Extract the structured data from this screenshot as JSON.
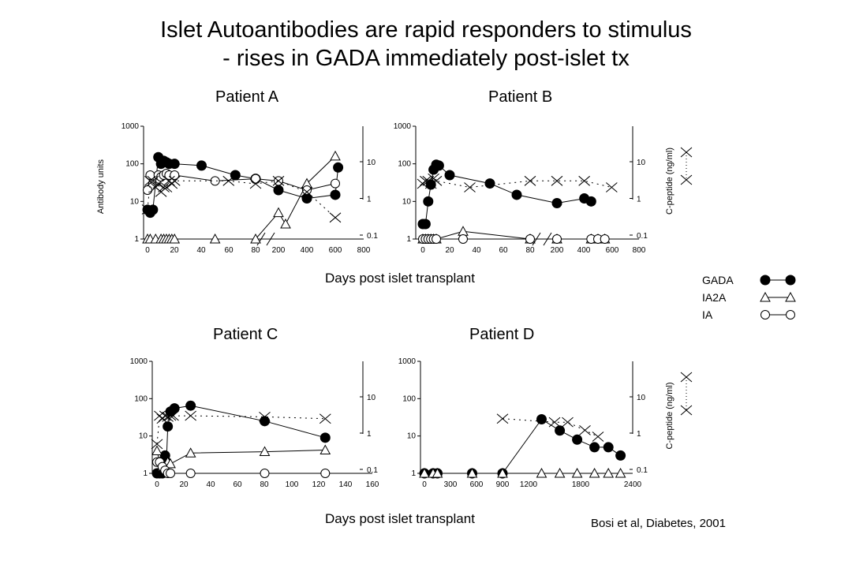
{
  "slide": {
    "title_line1": "Islet Autoantibodies are rapid responders to stimulus",
    "title_line2": "- rises in GADA immediately post-islet tx",
    "xlabel_top": "Days post islet transplant",
    "xlabel_bottom": "Days post islet transplant",
    "citation": "Bosi et al, Diabetes, 2001"
  },
  "legend": {
    "items": [
      {
        "label": "GADA",
        "marker": "filled-circle"
      },
      {
        "label": "IA2A",
        "marker": "open-triangle"
      },
      {
        "label": "IA",
        "marker": "open-circle"
      }
    ],
    "cpeptide_marker": "x"
  },
  "colors": {
    "series": "#000000",
    "background": "#ffffff"
  },
  "chart_data": [
    {
      "type": "line",
      "panel": "Patient A",
      "title": "Patient A",
      "ylabel": "Antibody units",
      "y2label": "",
      "yscale": "log",
      "ylim": [
        1,
        1000
      ],
      "yticks": [
        "1",
        "10",
        "100",
        "1000"
      ],
      "y2lim": [
        0.1,
        10
      ],
      "y2ticks": [
        "0.1",
        "1",
        "10"
      ],
      "axis_break": true,
      "xticks": [
        "0",
        "20",
        "40",
        "60",
        "80",
        "200",
        "400",
        "600",
        "800"
      ],
      "series": [
        {
          "name": "GADA",
          "marker": "filled-circle",
          "axis": "left",
          "x": [
            "0",
            "2",
            "4",
            "8",
            "10",
            "12",
            "14",
            "16",
            "20",
            "40",
            "65",
            "80",
            "200",
            "400",
            "600",
            "620"
          ],
          "y": [
            6,
            5,
            6,
            150,
            100,
            120,
            110,
            100,
            100,
            90,
            50,
            40,
            20,
            12,
            15,
            80
          ]
        },
        {
          "name": "IA2A",
          "marker": "open-triangle",
          "axis": "left",
          "x": [
            "0",
            "2",
            "6",
            "10",
            "12",
            "14",
            "16",
            "18",
            "20",
            "50",
            "80",
            "200",
            "250",
            "400",
            "600"
          ],
          "y": [
            1,
            1,
            1,
            1,
            1,
            1,
            1,
            1,
            1,
            1,
            1,
            5,
            2.5,
            30,
            160
          ]
        },
        {
          "name": "IA",
          "marker": "open-circle",
          "axis": "left",
          "x": [
            "0",
            "2",
            "8",
            "10",
            "12",
            "14",
            "16",
            "20",
            "50",
            "80",
            "200",
            "400",
            "600"
          ],
          "y": [
            20,
            50,
            50,
            45,
            50,
            55,
            50,
            50,
            35,
            40,
            35,
            20,
            30
          ]
        },
        {
          "name": "C-peptide",
          "marker": "x",
          "axis": "right",
          "x": [
            "0",
            "2",
            "4",
            "6",
            "8",
            "10",
            "12",
            "14",
            "16",
            "18",
            "20",
            "60",
            "80",
            "200",
            "400",
            "600"
          ],
          "y": [
            0.5,
            3,
            3,
            2,
            2.5,
            1.5,
            2,
            2,
            3,
            2.5,
            3,
            3,
            2.5,
            3,
            1.5,
            0.3
          ]
        }
      ]
    },
    {
      "type": "line",
      "panel": "Patient B",
      "title": "Patient B",
      "ylabel": "",
      "y2label": "C-peptide (ng/ml)",
      "yscale": "log",
      "ylim": [
        1,
        1000
      ],
      "yticks": [
        "1",
        "10",
        "100",
        "1000"
      ],
      "y2lim": [
        0.1,
        10
      ],
      "y2ticks": [
        "0.1",
        "1",
        "10"
      ],
      "axis_break": true,
      "xticks": [
        "0",
        "20",
        "40",
        "60",
        "80",
        "200",
        "400",
        "600",
        "800"
      ],
      "series": [
        {
          "name": "GADA",
          "marker": "filled-circle",
          "axis": "left",
          "x": [
            "0",
            "2",
            "4",
            "6",
            "8",
            "10",
            "12",
            "20",
            "50",
            "70",
            "200",
            "400",
            "450"
          ],
          "y": [
            2.5,
            2.5,
            10,
            28,
            70,
            95,
            90,
            50,
            30,
            15,
            9,
            12,
            10
          ]
        },
        {
          "name": "IA2A",
          "marker": "open-triangle",
          "axis": "left",
          "x": [
            "0",
            "2",
            "4",
            "6",
            "8",
            "10",
            "30",
            "80",
            "200",
            "450",
            "500",
            "550"
          ],
          "y": [
            1,
            1,
            1,
            1,
            1,
            1,
            1.6,
            1,
            1,
            1,
            1,
            1
          ]
        },
        {
          "name": "IA",
          "marker": "open-circle",
          "axis": "left",
          "x": [
            "0",
            "2",
            "4",
            "6",
            "8",
            "10",
            "30",
            "80",
            "200",
            "450",
            "500",
            "550"
          ],
          "y": [
            1,
            1,
            1,
            1,
            1,
            1,
            1,
            1,
            1,
            1,
            1,
            1
          ]
        },
        {
          "name": "C-peptide",
          "marker": "x",
          "axis": "right",
          "x": [
            "0",
            "2",
            "4",
            "6",
            "8",
            "10",
            "35",
            "80",
            "200",
            "400",
            "600"
          ],
          "y": [
            2.5,
            3,
            3,
            2.5,
            3.5,
            3,
            2,
            3,
            3,
            3,
            2
          ]
        }
      ]
    },
    {
      "type": "line",
      "panel": "Patient C",
      "title": "Patient C",
      "ylabel": "",
      "y2label": "",
      "yscale": "log",
      "ylim": [
        1,
        1000
      ],
      "yticks": [
        "1",
        "10",
        "100",
        "1000"
      ],
      "y2lim": [
        0.1,
        10
      ],
      "y2ticks": [
        "0.1",
        "1",
        "10"
      ],
      "axis_break": false,
      "xlim": [
        0,
        160
      ],
      "xticks": [
        "0",
        "20",
        "40",
        "60",
        "80",
        "100",
        "120",
        "140",
        "160"
      ],
      "series": [
        {
          "name": "GADA",
          "marker": "filled-circle",
          "axis": "left",
          "x": [
            0,
            2,
            4,
            6,
            7,
            8,
            10,
            13,
            25,
            80,
            125
          ],
          "y": [
            1,
            1,
            1,
            3,
            2,
            18,
            45,
            55,
            65,
            25,
            9
          ]
        },
        {
          "name": "IA2A",
          "marker": "open-triangle",
          "axis": "left",
          "x": [
            0,
            2,
            4,
            6,
            8,
            10,
            25,
            80,
            125
          ],
          "y": [
            4,
            2,
            1.5,
            1.5,
            2,
            1.8,
            3.5,
            3.8,
            4.2
          ]
        },
        {
          "name": "IA",
          "marker": "open-circle",
          "axis": "left",
          "x": [
            0,
            2,
            4,
            6,
            8,
            10,
            25,
            80,
            125
          ],
          "y": [
            2,
            2,
            1.5,
            1.2,
            1,
            1,
            1,
            1,
            1
          ]
        },
        {
          "name": "C-peptide",
          "marker": "x",
          "axis": "right",
          "x": [
            0,
            2,
            4,
            6,
            8,
            10,
            12,
            25,
            80,
            125
          ],
          "y": [
            0.5,
            3,
            2.5,
            3,
            2.8,
            3,
            3,
            3,
            2.8,
            2.5
          ]
        }
      ]
    },
    {
      "type": "line",
      "panel": "Patient D",
      "title": "Patient D",
      "ylabel": "",
      "y2label": "C-peptide (ng/ml)",
      "yscale": "log",
      "ylim": [
        1,
        1000
      ],
      "yticks": [
        "1",
        "10",
        "100",
        "1000"
      ],
      "y2lim": [
        0.1,
        10
      ],
      "y2ticks": [
        "0.1",
        "1",
        "10"
      ],
      "axis_break": false,
      "xlim": [
        0,
        2400
      ],
      "xticks": [
        "0",
        "300",
        "600",
        "900",
        "1200",
        "1800",
        "2400"
      ],
      "series": [
        {
          "name": "GADA",
          "marker": "filled-circle",
          "axis": "left",
          "x": [
            0,
            100,
            150,
            550,
            900,
            1350,
            1560,
            1760,
            1960,
            2120,
            2260
          ],
          "y": [
            1,
            1,
            1,
            1,
            1,
            28,
            14,
            8,
            5,
            5,
            3
          ]
        },
        {
          "name": "IA2A",
          "marker": "open-triangle",
          "axis": "left",
          "x": [
            0,
            100,
            150,
            550,
            900,
            1350,
            1560,
            1760,
            1960,
            2120,
            2260
          ],
          "y": [
            1,
            1,
            1,
            1,
            1,
            1,
            1,
            1,
            1,
            1,
            1
          ]
        },
        {
          "name": "C-peptide",
          "marker": "x",
          "axis": "right",
          "x": [
            900,
            1500,
            1650,
            1850,
            2000
          ],
          "y": [
            2.5,
            2,
            2,
            1.2,
            0.8
          ]
        }
      ]
    }
  ]
}
